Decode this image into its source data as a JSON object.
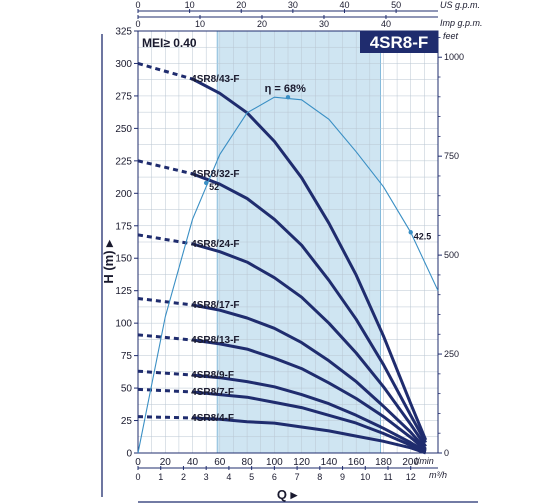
{
  "chart_data": {
    "type": "line",
    "model": "4SR8-F",
    "mei": "MEI≥ 0.40",
    "x_primary": {
      "unit": "l/min",
      "min": 0,
      "max": 200,
      "ticks": [
        0,
        20,
        40,
        60,
        80,
        100,
        120,
        140,
        160,
        180,
        200
      ]
    },
    "x_m3h": {
      "unit": "m³/h",
      "ticks": [
        0,
        1,
        2,
        3,
        4,
        5,
        6,
        7,
        8,
        9,
        10,
        11,
        12
      ]
    },
    "x_us_gpm": {
      "unit": "US g.p.m.",
      "ticks": [
        0,
        10,
        20,
        30,
        40,
        50
      ]
    },
    "x_imp_gpm": {
      "unit": "Imp g.p.m.",
      "ticks": [
        0,
        10,
        20,
        30,
        40
      ]
    },
    "xlabel": "Q",
    "y_primary": {
      "unit": "(m)",
      "label": "H",
      "min": 0,
      "max": 325,
      "ticks": [
        0,
        25,
        50,
        75,
        100,
        125,
        150,
        175,
        200,
        225,
        250,
        275,
        300,
        325
      ]
    },
    "y_feet": {
      "unit": "feet",
      "ticks": [
        0,
        250,
        500,
        750,
        1000
      ]
    },
    "recommended_range_lpm": [
      58,
      178
    ],
    "series": [
      {
        "name": "4SR8/43-F",
        "shutoff": 300,
        "values": [
          [
            40,
            288
          ],
          [
            60,
            277
          ],
          [
            80,
            262
          ],
          [
            100,
            240
          ],
          [
            120,
            212
          ],
          [
            140,
            177
          ],
          [
            160,
            137
          ],
          [
            180,
            90
          ],
          [
            200,
            38
          ],
          [
            211,
            10
          ]
        ]
      },
      {
        "name": "4SR8/32-F",
        "shutoff": 225,
        "values": [
          [
            40,
            215
          ],
          [
            60,
            207
          ],
          [
            80,
            196
          ],
          [
            100,
            180
          ],
          [
            120,
            160
          ],
          [
            140,
            133
          ],
          [
            160,
            103
          ],
          [
            180,
            68
          ],
          [
            200,
            29
          ],
          [
            211,
            8
          ]
        ]
      },
      {
        "name": "4SR8/24-F",
        "shutoff": 168,
        "values": [
          [
            40,
            161
          ],
          [
            60,
            155
          ],
          [
            80,
            147
          ],
          [
            100,
            135
          ],
          [
            120,
            120
          ],
          [
            140,
            100
          ],
          [
            160,
            77
          ],
          [
            180,
            51
          ],
          [
            200,
            22
          ],
          [
            211,
            5
          ]
        ]
      },
      {
        "name": "4SR8/17-F",
        "shutoff": 119,
        "values": [
          [
            40,
            114
          ],
          [
            60,
            110
          ],
          [
            80,
            104
          ],
          [
            100,
            96
          ],
          [
            120,
            85
          ],
          [
            140,
            71
          ],
          [
            160,
            55
          ],
          [
            180,
            36
          ],
          [
            200,
            16
          ],
          [
            211,
            3
          ]
        ]
      },
      {
        "name": "4SR8/13-F",
        "shutoff": 91,
        "values": [
          [
            40,
            87
          ],
          [
            60,
            84
          ],
          [
            80,
            80
          ],
          [
            100,
            73
          ],
          [
            120,
            65
          ],
          [
            140,
            54
          ],
          [
            160,
            42
          ],
          [
            180,
            28
          ],
          [
            200,
            12
          ],
          [
            211,
            2
          ]
        ]
      },
      {
        "name": "4SR8/9-F",
        "shutoff": 63,
        "values": [
          [
            40,
            60
          ],
          [
            60,
            58
          ],
          [
            80,
            55
          ],
          [
            100,
            51
          ],
          [
            120,
            45
          ],
          [
            140,
            38
          ],
          [
            160,
            29
          ],
          [
            180,
            19
          ],
          [
            200,
            8
          ],
          [
            211,
            1
          ]
        ]
      },
      {
        "name": "4SR8/7-F",
        "shutoff": 49,
        "values": [
          [
            40,
            47
          ],
          [
            60,
            45
          ],
          [
            80,
            43
          ],
          [
            100,
            39
          ],
          [
            120,
            35
          ],
          [
            140,
            29
          ],
          [
            160,
            23
          ],
          [
            180,
            15
          ],
          [
            200,
            6
          ],
          [
            211,
            1
          ]
        ]
      },
      {
        "name": "4SR8/4-F",
        "shutoff": 28,
        "values": [
          [
            40,
            27
          ],
          [
            60,
            26
          ],
          [
            80,
            24
          ],
          [
            100,
            23
          ],
          [
            120,
            20
          ],
          [
            140,
            17
          ],
          [
            160,
            13
          ],
          [
            180,
            9
          ],
          [
            200,
            4
          ],
          [
            211,
            0
          ]
        ]
      }
    ],
    "efficiency": {
      "label": "η = 68%",
      "values": [
        [
          0,
          0
        ],
        [
          20,
          105
        ],
        [
          40,
          180
        ],
        [
          60,
          230
        ],
        [
          80,
          262
        ],
        [
          100,
          274
        ],
        [
          120,
          272
        ],
        [
          140,
          257
        ],
        [
          160,
          232
        ],
        [
          180,
          205
        ],
        [
          200,
          170
        ],
        [
          220,
          125
        ]
      ],
      "points": [
        {
          "x": 50,
          "y": 208,
          "label": "52"
        },
        {
          "x": 110,
          "y": 274,
          "label": ""
        },
        {
          "x": 200,
          "y": 170,
          "label": "42.5"
        }
      ]
    }
  }
}
